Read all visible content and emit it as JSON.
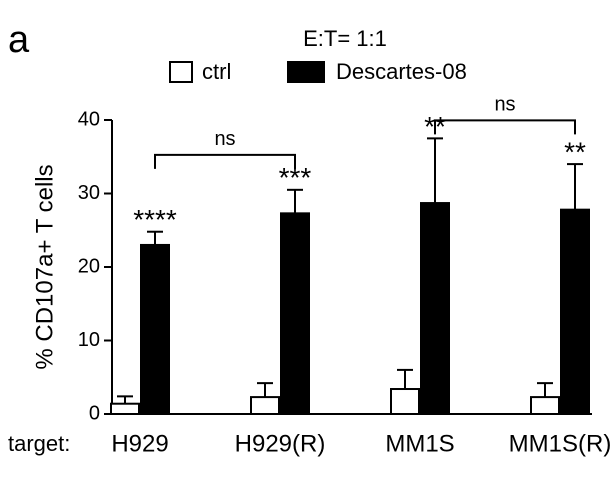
{
  "chart_data": {
    "type": "bar",
    "panel_label": "a",
    "title": "E:T= 1:1",
    "y_label": "% CD107a+ T cells",
    "x_label": "target:",
    "categories": [
      "H929",
      "H929(R)",
      "MM1S",
      "MM1S(R)"
    ],
    "series": [
      {
        "name": "ctrl",
        "color": "#ffffff",
        "values": [
          1.4,
          2.3,
          3.4,
          2.3
        ],
        "errors": [
          1.0,
          1.9,
          2.6,
          1.9
        ]
      },
      {
        "name": "Descartes-08",
        "color": "#000000",
        "values": [
          23,
          27.3,
          28.7,
          27.8
        ],
        "errors": [
          1.8,
          3.2,
          8.8,
          6.2
        ]
      }
    ],
    "significance": [
      "****",
      "***",
      "**",
      "**"
    ],
    "brackets": [
      {
        "label": "ns",
        "from": "H929",
        "to": "H929(R)"
      },
      {
        "label": "ns",
        "from": "MM1S",
        "to": "MM1S(R)"
      }
    ],
    "ylim": [
      0,
      40
    ],
    "yticks": [
      0,
      10,
      20,
      30,
      40
    ],
    "legend": "top"
  }
}
